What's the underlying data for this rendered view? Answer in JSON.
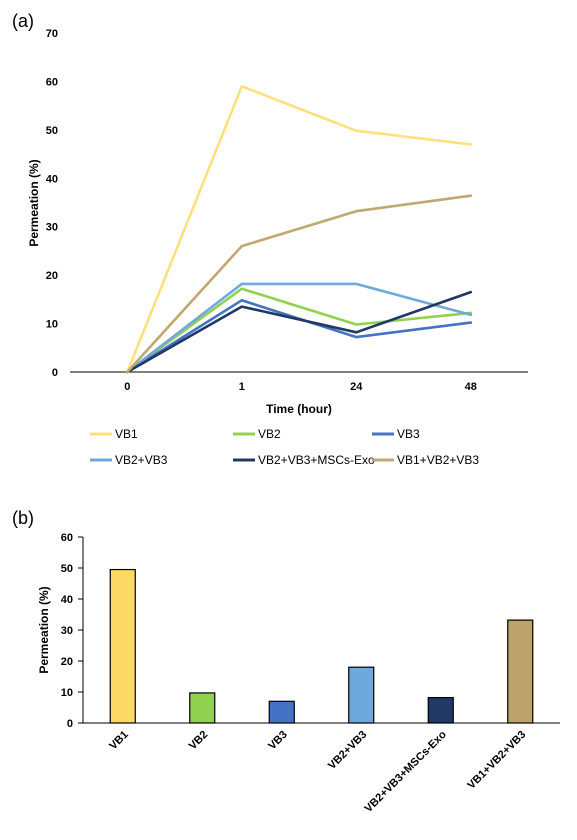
{
  "chart_data": [
    {
      "panel_label": "(a)",
      "type": "line",
      "categories": [
        "0",
        "1",
        "24",
        "48"
      ],
      "xlabel": "Time (hour)",
      "ylabel": "Permeation (%)",
      "ylim": [
        0,
        70
      ],
      "yticks": [
        0,
        10,
        20,
        30,
        40,
        50,
        60,
        70
      ],
      "grid": false,
      "legend_position": "bottom",
      "series": [
        {
          "name": "VB1",
          "color": "#FFE07A",
          "values": [
            0,
            59,
            49.8,
            47
          ]
        },
        {
          "name": "VB2",
          "color": "#92D050",
          "values": [
            0,
            17.2,
            9.8,
            12.2
          ]
        },
        {
          "name": "VB3",
          "color": "#4472C4",
          "values": [
            0,
            14.8,
            7.2,
            10.2
          ]
        },
        {
          "name": "VB2+VB3",
          "color": "#6FA8DC",
          "values": [
            0,
            18.2,
            18.2,
            11.8
          ]
        },
        {
          "name": "VB2+VB3+MSCs-Exo",
          "color": "#203864",
          "values": [
            0,
            13.5,
            8.2,
            16.5
          ]
        },
        {
          "name": "VB1+VB2+VB3",
          "color": "#C0A870",
          "values": [
            0,
            26,
            33.2,
            36.4
          ]
        }
      ]
    },
    {
      "panel_label": "(b)",
      "type": "bar",
      "categories": [
        "VB1",
        "VB2",
        "VB3",
        "VB2+VB3",
        "VB2+VB3+MSCs-Exo",
        "VB1+VB2+VB3"
      ],
      "values": [
        49.5,
        9.7,
        7.0,
        18.0,
        8.2,
        33.2
      ],
      "colors": [
        "#FFD966",
        "#92D050",
        "#4472C4",
        "#6FA8DC",
        "#203864",
        "#BBA36B"
      ],
      "xlabel": "",
      "ylabel": "Permeation (%)",
      "ylim": [
        0,
        60
      ],
      "yticks": [
        0,
        10,
        20,
        30,
        40,
        50,
        60
      ],
      "grid": false
    }
  ]
}
